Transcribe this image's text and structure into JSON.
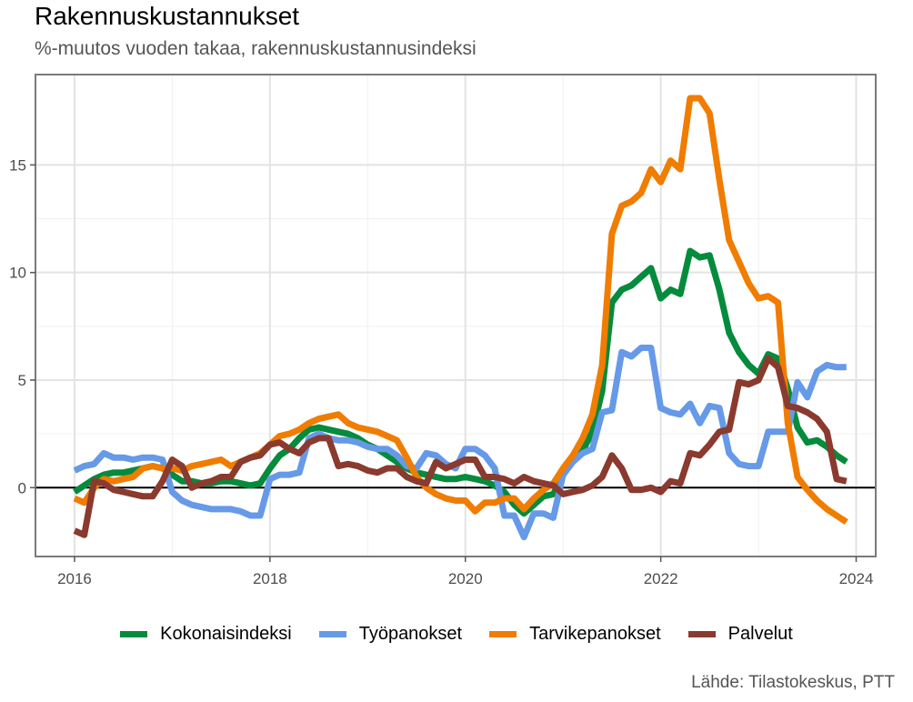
{
  "title": "Rakennuskustannukset",
  "subtitle": "%-muutos vuoden takaa, rakennuskustannusindeksi",
  "caption": "Lähde: Tilastokeskus, PTT",
  "chart_data": {
    "type": "line",
    "title": "Rakennuskustannukset",
    "subtitle": "%-muutos vuoden takaa, rakennuskustannusindeksi",
    "xlabel": "",
    "ylabel": "",
    "x_unit": "year",
    "x_ticks": [
      2016,
      2018,
      2020,
      2022,
      2024
    ],
    "y_ticks": [
      0,
      5,
      10,
      15
    ],
    "xlim": [
      2015.6,
      2024.2
    ],
    "ylim": [
      -3.2,
      19.2
    ],
    "grid": true,
    "zero_line": true,
    "legend_position": "bottom",
    "x": [
      2016.0,
      2016.1,
      2016.2,
      2016.3,
      2016.4,
      2016.5,
      2016.6,
      2016.7,
      2016.8,
      2016.9,
      2017.0,
      2017.1,
      2017.2,
      2017.3,
      2017.4,
      2017.5,
      2017.6,
      2017.7,
      2017.8,
      2017.9,
      2018.0,
      2018.1,
      2018.2,
      2018.3,
      2018.4,
      2018.5,
      2018.6,
      2018.7,
      2018.8,
      2018.9,
      2019.0,
      2019.1,
      2019.2,
      2019.3,
      2019.4,
      2019.5,
      2019.6,
      2019.7,
      2019.8,
      2019.9,
      2020.0,
      2020.1,
      2020.2,
      2020.3,
      2020.4,
      2020.5,
      2020.6,
      2020.7,
      2020.8,
      2020.9,
      2021.0,
      2021.1,
      2021.2,
      2021.3,
      2021.4,
      2021.5,
      2021.6,
      2021.7,
      2021.8,
      2021.9,
      2022.0,
      2022.1,
      2022.2,
      2022.3,
      2022.4,
      2022.5,
      2022.6,
      2022.7,
      2022.8,
      2022.9,
      2023.0,
      2023.1,
      2023.2,
      2023.3,
      2023.4,
      2023.5,
      2023.6,
      2023.7,
      2023.8,
      2023.9
    ],
    "series": [
      {
        "name": "Kokonaisindeksi",
        "color": "#058b3c",
        "values": [
          -0.2,
          0.1,
          0.4,
          0.6,
          0.7,
          0.7,
          0.8,
          0.9,
          1.0,
          0.9,
          0.6,
          0.3,
          0.3,
          0.2,
          0.2,
          0.3,
          0.3,
          0.2,
          0.1,
          0.2,
          0.9,
          1.5,
          1.8,
          2.3,
          2.7,
          2.8,
          2.7,
          2.6,
          2.5,
          2.3,
          2.0,
          1.8,
          1.5,
          1.2,
          0.9,
          0.7,
          0.6,
          0.5,
          0.4,
          0.4,
          0.5,
          0.4,
          0.3,
          0.1,
          -0.2,
          -0.8,
          -1.2,
          -0.8,
          -0.4,
          -0.3,
          0.6,
          1.2,
          1.7,
          2.6,
          4.5,
          8.6,
          9.2,
          9.4,
          9.8,
          10.2,
          8.8,
          9.2,
          9.0,
          11.0,
          10.7,
          10.8,
          9.2,
          7.2,
          6.3,
          5.7,
          5.3,
          6.2,
          6.0,
          4.6,
          2.8,
          2.1,
          2.2,
          1.9,
          1.5,
          1.2
        ]
      },
      {
        "name": "Työpanokset",
        "color": "#6699e8",
        "values": [
          0.8,
          1.0,
          1.1,
          1.6,
          1.4,
          1.4,
          1.3,
          1.4,
          1.4,
          1.3,
          -0.2,
          -0.6,
          -0.8,
          -0.9,
          -1.0,
          -1.0,
          -1.0,
          -1.1,
          -1.3,
          -1.3,
          0.4,
          0.6,
          0.6,
          0.7,
          2.3,
          2.5,
          2.3,
          2.2,
          2.2,
          2.1,
          1.9,
          1.8,
          1.8,
          1.5,
          1.0,
          0.9,
          1.6,
          1.5,
          1.1,
          0.9,
          1.8,
          1.8,
          1.5,
          0.9,
          -1.3,
          -1.3,
          -2.3,
          -1.2,
          -1.2,
          -1.4,
          0.6,
          1.2,
          1.6,
          1.8,
          3.5,
          3.6,
          6.3,
          6.1,
          6.5,
          6.5,
          3.7,
          3.5,
          3.4,
          3.9,
          3.0,
          3.8,
          3.7,
          1.6,
          1.1,
          1.0,
          1.0,
          2.6,
          2.6,
          2.6,
          4.9,
          4.2,
          5.4,
          5.7,
          5.6,
          5.6
        ]
      },
      {
        "name": "Tarvikepanokset",
        "color": "#f07c00",
        "values": [
          -0.5,
          -0.7,
          0.0,
          0.4,
          0.3,
          0.4,
          0.5,
          0.9,
          1.0,
          0.9,
          0.9,
          0.8,
          1.0,
          1.1,
          1.2,
          1.3,
          1.0,
          1.2,
          1.4,
          1.6,
          2.0,
          2.4,
          2.5,
          2.7,
          3.0,
          3.2,
          3.3,
          3.4,
          3.0,
          2.8,
          2.7,
          2.6,
          2.4,
          2.2,
          1.4,
          0.5,
          0.0,
          -0.3,
          -0.5,
          -0.6,
          -0.6,
          -1.1,
          -0.7,
          -0.7,
          -0.5,
          -0.5,
          -1.0,
          -0.5,
          -0.1,
          0.2,
          0.9,
          1.5,
          2.3,
          3.4,
          5.7,
          11.8,
          13.1,
          13.3,
          13.7,
          14.8,
          14.2,
          15.2,
          14.8,
          18.1,
          18.1,
          17.4,
          14.3,
          11.5,
          10.5,
          9.5,
          8.8,
          8.9,
          8.6,
          3.0,
          0.5,
          -0.1,
          -0.6,
          -1.0,
          -1.3,
          -1.6
        ]
      },
      {
        "name": "Palvelut",
        "color": "#8a3a2e",
        "values": [
          -2.0,
          -2.2,
          0.3,
          0.2,
          -0.1,
          -0.2,
          -0.3,
          -0.4,
          -0.4,
          0.3,
          1.3,
          1.0,
          0.0,
          0.2,
          0.3,
          0.5,
          0.5,
          1.2,
          1.4,
          1.5,
          2.0,
          2.1,
          1.8,
          1.6,
          2.1,
          2.3,
          2.3,
          1.0,
          1.1,
          1.0,
          0.8,
          0.7,
          0.9,
          0.9,
          0.5,
          0.3,
          0.2,
          1.2,
          0.9,
          1.1,
          1.3,
          1.3,
          0.5,
          0.5,
          0.4,
          0.2,
          0.5,
          0.3,
          0.2,
          0.1,
          -0.3,
          -0.2,
          -0.1,
          0.1,
          0.5,
          1.5,
          0.9,
          -0.1,
          -0.1,
          0.0,
          -0.2,
          0.3,
          0.2,
          1.6,
          1.5,
          2.0,
          2.6,
          2.7,
          4.9,
          4.8,
          5.0,
          6.0,
          5.6,
          3.8,
          3.7,
          3.5,
          3.2,
          2.6,
          0.4,
          0.3
        ]
      }
    ]
  }
}
